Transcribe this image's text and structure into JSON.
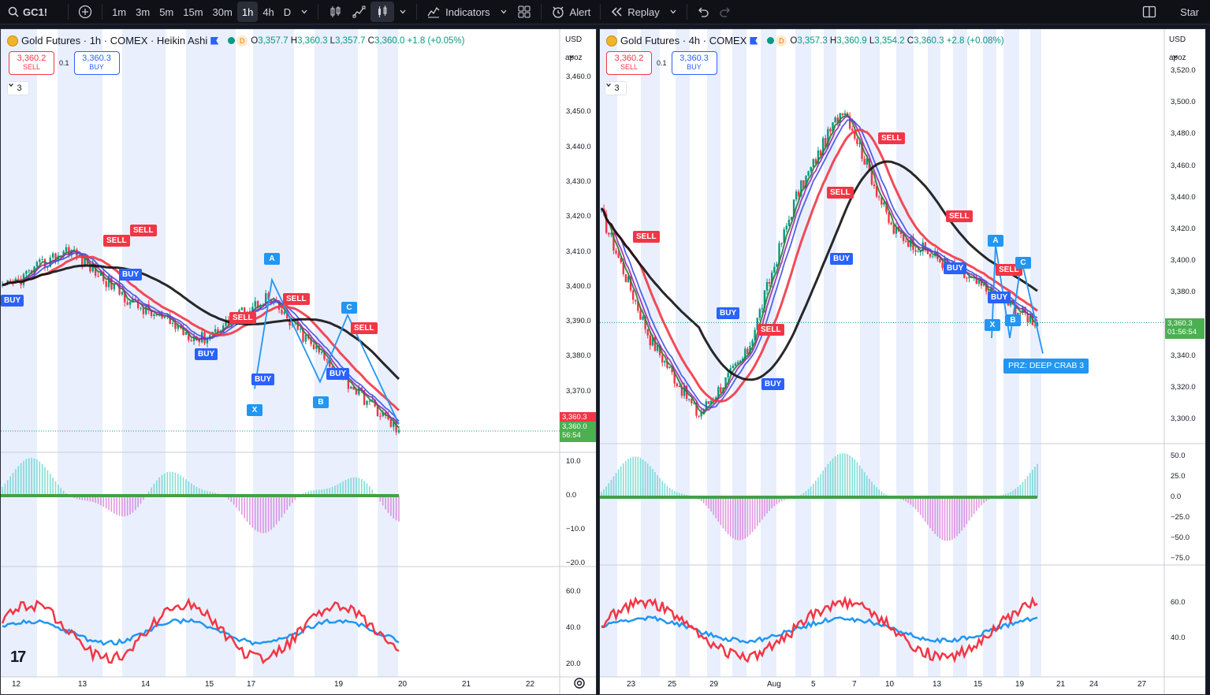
{
  "toolbar": {
    "symbol": "GC1!",
    "intervals": [
      "1m",
      "3m",
      "5m",
      "15m",
      "30m",
      "1h",
      "4h",
      "D"
    ],
    "active_interval": "1h",
    "indicators_label": "Indicators",
    "alert_label": "Alert",
    "replay_label": "Replay",
    "star_label": "Star",
    "icons": [
      "search-icon",
      "add-symbol-icon",
      "chevron-down-icon",
      "bar-style-icon",
      "compare-icon",
      "candles-icon",
      "indicators-icon",
      "layout-icon",
      "alert-icon",
      "replay-icon",
      "undo-icon",
      "redo-icon",
      "panel-icon"
    ]
  },
  "left_chart": {
    "title": "Gold Futures · 1h · COMEX · Heikin Ashi",
    "ohlc": {
      "o_label": "O",
      "o": "3,357.7",
      "h_label": "H",
      "h": "3,360.3",
      "l_label": "L",
      "l": "3,357.7",
      "c_label": "C",
      "c": "3,360.0",
      "chg": "+1.8 (+0.05%)"
    },
    "dot_label": "D",
    "sell": {
      "price": "3,360.2",
      "label": "SELL"
    },
    "spread": "0.1",
    "buy": {
      "price": "3,360.3",
      "label": "BUY"
    },
    "collapse_label": "3",
    "currency": "USD",
    "scale_mode": "apoz",
    "price_ticks": [
      "3,460.0",
      "3,450.0",
      "3,440.0",
      "3,430.0",
      "3,420.0",
      "3,410.0",
      "3,400.0",
      "3,390.0",
      "3,380.0",
      "3,370.0"
    ],
    "badge_ask": "3,360.3",
    "badge_last": "3,360.0",
    "badge_timer": "56:54",
    "osc1_ticks": [
      "10.0",
      "0.0",
      "−10.0",
      "−20.0"
    ],
    "osc2_ticks": [
      "60.0",
      "40.0",
      "20.0"
    ],
    "date_ticks": [
      "12",
      "13",
      "14",
      "15",
      "17",
      "19",
      "20",
      "21",
      "22"
    ],
    "signals": [
      {
        "text": "BUY",
        "type": "buy"
      },
      {
        "text": "SELL",
        "type": "sell"
      },
      {
        "text": "SELL",
        "type": "sell"
      },
      {
        "text": "BUY",
        "type": "buy"
      },
      {
        "text": "BUY",
        "type": "buy"
      },
      {
        "text": "SELL",
        "type": "sell"
      },
      {
        "text": "SELL",
        "type": "sell"
      },
      {
        "text": "BUY",
        "type": "buy"
      },
      {
        "text": "BUY",
        "type": "buy"
      },
      {
        "text": "SELL",
        "type": "sell"
      }
    ],
    "pattern_points": [
      "X",
      "A",
      "B",
      "C"
    ],
    "colors": {
      "ema_black": "#111111",
      "ema_red": "#f23645",
      "ema_blue": "#3f51e6",
      "ema_purple": "#9c27b0",
      "ema_green": "#2e7d32",
      "bg_band": "#e8eefc"
    }
  },
  "right_chart": {
    "title": "Gold Futures · 4h · COMEX",
    "ohlc": {
      "o_label": "O",
      "o": "3,357.3",
      "h_label": "H",
      "h": "3,360.9",
      "l_label": "L",
      "l": "3,354.2",
      "c_label": "C",
      "c": "3,360.3",
      "chg": "+2.8 (+0.08%)"
    },
    "dot_label": "D",
    "sell": {
      "price": "3,360.2",
      "label": "SELL"
    },
    "spread": "0.1",
    "buy": {
      "price": "3,360.3",
      "label": "BUY"
    },
    "collapse_label": "3",
    "currency": "USD",
    "scale_mode": "apoz",
    "price_ticks": [
      "3,520.0",
      "3,500.0",
      "3,480.0",
      "3,460.0",
      "3,440.0",
      "3,420.0",
      "3,400.0",
      "3,380.0",
      "3,360.0",
      "3,340.0",
      "3,320.0",
      "3,300.0"
    ],
    "badge_last": "3,360.3",
    "badge_timer": "01:56:54",
    "osc1_ticks": [
      "50.0",
      "25.0",
      "0.0",
      "−25.0",
      "−50.0",
      "−75.0"
    ],
    "osc2_ticks": [
      "60.0",
      "40.0"
    ],
    "date_ticks": [
      "23",
      "25",
      "29",
      "Aug",
      "5",
      "7",
      "10",
      "13",
      "15",
      "19",
      "21",
      "24",
      "27"
    ],
    "signals": [
      {
        "text": "SELL",
        "type": "sell"
      },
      {
        "text": "BUY",
        "type": "buy"
      },
      {
        "text": "SELL",
        "type": "sell"
      },
      {
        "text": "BUY",
        "type": "buy"
      },
      {
        "text": "SELL",
        "type": "sell"
      },
      {
        "text": "BUY",
        "type": "buy"
      },
      {
        "text": "SELL",
        "type": "sell"
      },
      {
        "text": "SELL",
        "type": "sell"
      },
      {
        "text": "BUY",
        "type": "buy"
      },
      {
        "text": "SELL",
        "type": "sell"
      },
      {
        "text": "BUY",
        "type": "buy"
      }
    ],
    "pattern_points": [
      "X",
      "A",
      "B",
      "C"
    ],
    "prz_label": "PRZ: DEEP CRAB 3"
  },
  "chart_data": [
    {
      "type": "line",
      "title": "Gold Futures · 1h · COMEX · Heikin Ashi",
      "x": [
        "12",
        "13",
        "14",
        "15",
        "17",
        "19",
        "20"
      ],
      "series": [
        {
          "name": "",
          "values": [
            3400,
            3412,
            3396,
            3386,
            3398,
            3378,
            3360
          ]
        }
      ],
      "ylim": [
        3360,
        3462
      ]
    },
    {
      "type": "line",
      "title": "Gold Futures · 4h · COMEX",
      "x": [
        "23",
        "25",
        "29",
        "Aug",
        "5",
        "7",
        "10",
        "13",
        "15",
        "19"
      ],
      "series": [
        {
          "name": "",
          "values": [
            3430,
            3350,
            3300,
            3340,
            3440,
            3500,
            3420,
            3400,
            3380,
            3360
          ]
        }
      ],
      "ylim": [
        3290,
        3525
      ]
    }
  ]
}
